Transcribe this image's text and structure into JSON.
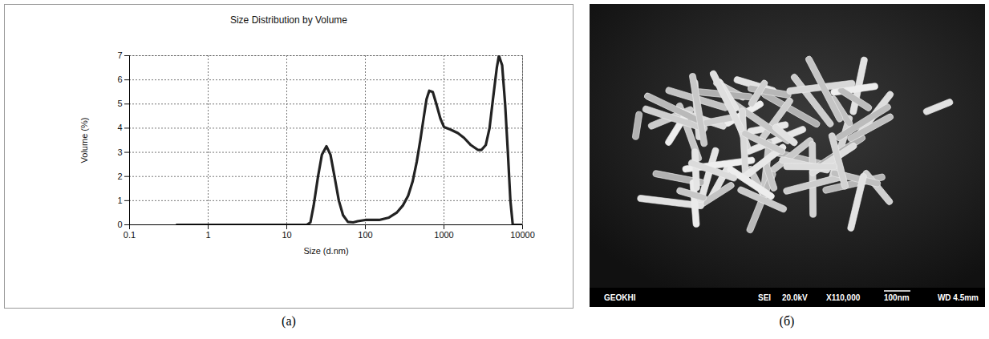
{
  "chart_data": {
    "type": "line",
    "title": "Size Distribution by Volume",
    "x_label": "Size (d.nm)",
    "y_label": "Volume (%)",
    "panel_label": "(а)",
    "x": [
      0.4,
      1,
      5,
      10,
      18,
      20,
      22,
      25,
      28,
      32,
      36,
      40,
      46,
      52,
      60,
      70,
      80,
      100,
      150,
      200,
      250,
      300,
      350,
      400,
      450,
      500,
      550,
      600,
      650,
      720,
      800,
      900,
      1000,
      1200,
      1500,
      1800,
      2200,
      2700,
      3000,
      3400,
      3800,
      4200,
      4700,
      5000,
      5500,
      6000,
      6500,
      7000,
      7500,
      8500,
      10000
    ],
    "values": [
      0,
      0,
      0,
      0,
      0,
      0.1,
      0.8,
      2.0,
      2.9,
      3.25,
      2.9,
      2.1,
      1.0,
      0.4,
      0.12,
      0.1,
      0.15,
      0.2,
      0.2,
      0.3,
      0.5,
      0.8,
      1.2,
      1.8,
      2.6,
      3.5,
      4.4,
      5.2,
      5.55,
      5.5,
      5.0,
      4.4,
      4.05,
      3.95,
      3.8,
      3.6,
      3.3,
      3.1,
      3.1,
      3.3,
      4.0,
      5.2,
      6.5,
      7.0,
      6.6,
      5.0,
      3.0,
      1.0,
      0,
      0,
      0
    ],
    "color": "#222222",
    "xlim": [
      0.1,
      10000
    ],
    "xticks": [
      0.1,
      1,
      10,
      100,
      1000,
      10000
    ],
    "ylim": [
      0,
      7
    ],
    "yticks": [
      0,
      1,
      2,
      3,
      4,
      5,
      6,
      7
    ],
    "log": "x",
    "grid": true
  },
  "image_panel": {
    "panel_label": "(б)",
    "info_bar": {
      "left": "GEOKHI",
      "items": [
        "SEI",
        "20.0kV",
        "X110,000"
      ],
      "scale_bar_label": "100nm",
      "working_distance": "WD 4.5mm"
    }
  }
}
